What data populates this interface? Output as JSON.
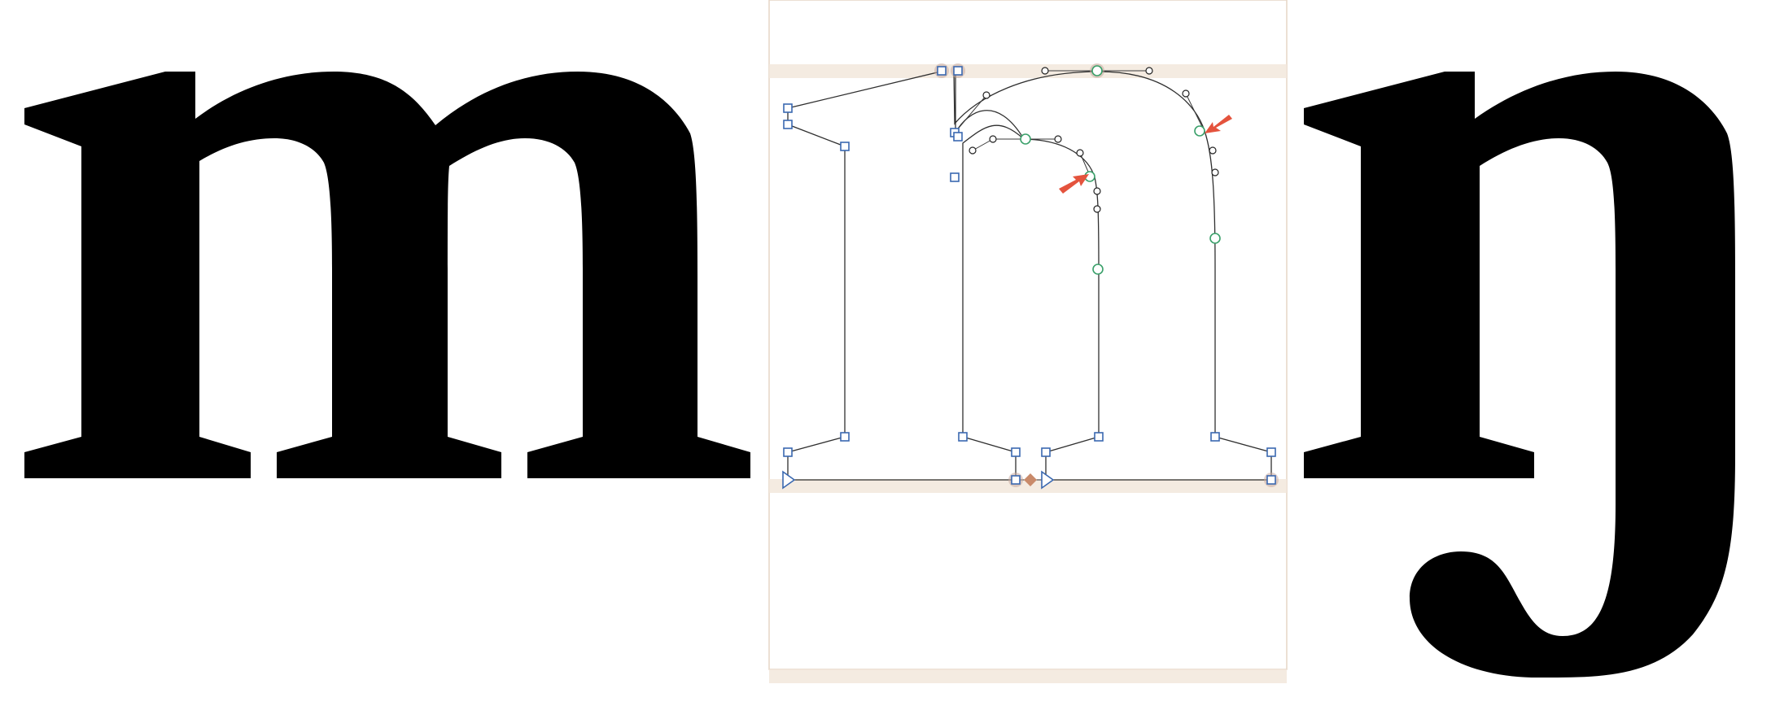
{
  "editor": {
    "preview_glyph_left": "m",
    "active_glyph": "n",
    "preview_glyph_right": "ŋ"
  },
  "colors": {
    "background": "#ffffff",
    "glyph_fill": "#000000",
    "metric_band": "#f2e7dc",
    "corner_node": "#3a68b0",
    "smooth_node": "#3aa06a",
    "anchor": "#c98a6a",
    "annotation_arrow": "#e4533d"
  },
  "icons": [
    "corner-node-icon",
    "smooth-node-icon",
    "handle-node-icon",
    "anchor-icon",
    "annotation-arrow-icon"
  ]
}
